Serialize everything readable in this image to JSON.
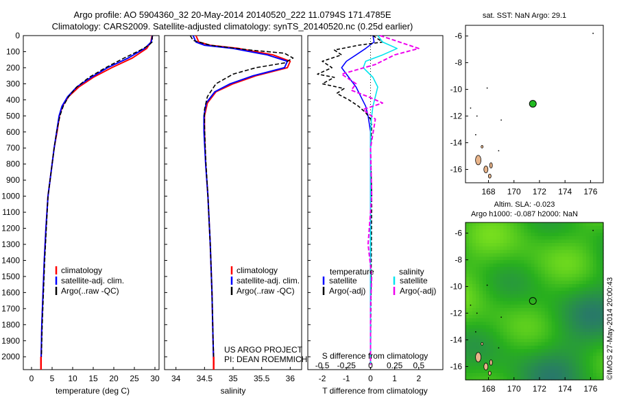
{
  "header": {
    "line1": "Argo profile: AO 5904360_32 20-May-2014 20140520_222 11.0794S 171.4785E",
    "line2": "Climatology: CARS2009. Satellite-adjusted climatology: synTS_20140520.nc (0.25d earlier)"
  },
  "colors": {
    "climatology": "#ff0000",
    "satellite": "#0000ff",
    "argo": "#000000",
    "salinity_satellite": "#00e5ee",
    "salinity_argo": "#ee00ee",
    "land": "#e8b48a",
    "sst_marker": "#22bb22"
  },
  "chart_data": [
    {
      "type": "line",
      "panel": "temperature",
      "xlabel": "temperature (deg C)",
      "ylabel": "",
      "xlim": [
        -2,
        31
      ],
      "ylim": [
        2080,
        0
      ],
      "xticks": [
        0,
        5,
        10,
        15,
        20,
        25,
        30
      ],
      "yticks": [
        0,
        100,
        200,
        300,
        400,
        500,
        600,
        700,
        800,
        900,
        1000,
        1100,
        1200,
        1300,
        1400,
        1500,
        1600,
        1700,
        1800,
        1900,
        2000
      ],
      "legend": [
        "climatology",
        "satellite-adj. clim.",
        "Argo(..raw -QC)"
      ],
      "series": [
        {
          "name": "climatology",
          "x": [
            29.3,
            29.0,
            28.0,
            24.5,
            19.5,
            15.0,
            11.5,
            9.0,
            7.5,
            6.8,
            6.2,
            5.5,
            5.0,
            4.5,
            4.0,
            3.5,
            3.1,
            2.8,
            2.5,
            2.3
          ],
          "y": [
            0,
            40,
            80,
            140,
            200,
            260,
            320,
            380,
            440,
            500,
            600,
            700,
            800,
            900,
            1000,
            1200,
            1400,
            1600,
            1800,
            2050
          ]
        },
        {
          "name": "satellite-adj. clim.",
          "x": [
            29.4,
            29.1,
            27.5,
            23.5,
            18.5,
            14.5,
            11.0,
            8.8,
            7.4,
            6.7,
            6.1,
            5.5,
            5.0,
            4.5,
            4.0,
            3.5,
            3.1,
            2.8,
            2.5,
            2.3
          ],
          "y": [
            0,
            40,
            80,
            140,
            200,
            260,
            320,
            380,
            440,
            500,
            600,
            700,
            800,
            900,
            1000,
            1200,
            1400,
            1600,
            1800,
            2050
          ]
        },
        {
          "name": "Argo(..raw -QC)",
          "x": [
            29.4,
            29.3,
            28.5,
            26.5,
            22.5,
            18.0,
            14.0,
            11.0,
            9.0,
            7.7,
            6.9,
            6.1,
            5.5,
            5.0,
            4.5,
            4.0,
            3.6,
            3.2,
            2.9,
            2.6,
            2.4
          ],
          "y": [
            0,
            40,
            60,
            90,
            140,
            200,
            260,
            320,
            380,
            440,
            500,
            600,
            700,
            800,
            900,
            1000,
            1200,
            1400,
            1600,
            1800,
            2000
          ]
        }
      ]
    },
    {
      "type": "line",
      "panel": "salinity",
      "xlabel": "salinity",
      "ylabel": "",
      "xlim": [
        33.8,
        36.2
      ],
      "ylim": [
        2080,
        0
      ],
      "xticks": [
        34,
        34.5,
        35,
        35.5,
        36
      ],
      "legend": [
        "climatology",
        "satellite-adj. clim.",
        "Argo(..raw -QC)"
      ],
      "annotation": [
        "US ARGO PROJECT",
        "PI: DEAN ROEMMICH"
      ],
      "series": [
        {
          "name": "climatology",
          "x": [
            34.35,
            34.4,
            34.6,
            35.1,
            35.7,
            36.0,
            35.95,
            35.4,
            35.0,
            34.7,
            34.55,
            34.5,
            34.5,
            34.52,
            34.56,
            34.6,
            34.63,
            34.65,
            34.66
          ],
          "y": [
            0,
            40,
            60,
            80,
            120,
            160,
            200,
            250,
            300,
            350,
            420,
            500,
            600,
            800,
            1000,
            1300,
            1600,
            1900,
            2050
          ]
        },
        {
          "name": "satellite-adj. clim.",
          "x": [
            34.3,
            34.35,
            34.5,
            35.0,
            35.6,
            35.95,
            35.9,
            35.35,
            34.95,
            34.68,
            34.53,
            34.49,
            34.49,
            34.52,
            34.56,
            34.6,
            34.63,
            34.65,
            34.66
          ],
          "y": [
            0,
            40,
            60,
            80,
            120,
            160,
            200,
            250,
            300,
            350,
            420,
            500,
            600,
            800,
            1000,
            1300,
            1600,
            1900,
            2050
          ]
        },
        {
          "name": "Argo(..raw -QC)",
          "x": [
            34.25,
            34.3,
            34.6,
            35.3,
            35.9,
            36.05,
            35.9,
            35.4,
            35.0,
            34.7,
            34.55,
            34.5,
            34.5,
            34.52,
            34.56,
            34.6,
            34.63,
            34.65,
            34.66
          ],
          "y": [
            0,
            30,
            60,
            90,
            110,
            140,
            170,
            200,
            240,
            300,
            380,
            460,
            560,
            760,
            1000,
            1300,
            1600,
            1900,
            2000
          ]
        }
      ]
    },
    {
      "type": "line",
      "panel": "difference",
      "xlabel": "T difference from climatology",
      "xlabel2": "S difference from climatology",
      "xlim": [
        -2.6,
        3
      ],
      "xticks": [
        -2,
        -1,
        0,
        1,
        2
      ],
      "x2ticks": [
        -0.5,
        -0.25,
        0,
        0.25,
        0.5
      ],
      "x2ticklabels": [
        "-0.5",
        "-0.25",
        "0",
        "0.25",
        "0.5"
      ],
      "ylim": [
        2080,
        0
      ],
      "legend_titles": [
        "temperature",
        "salinity"
      ],
      "legend": [
        "satellite",
        "Argo(-adj)",
        "satellite",
        "Argo(-adj)"
      ],
      "series": [
        {
          "name": "satellite",
          "x": [
            0.1,
            0.15,
            -0.2,
            -0.6,
            -1.0,
            -1.2,
            -0.9,
            -0.6,
            -0.4,
            -0.2,
            -0.1,
            0,
            0,
            0,
            0,
            0
          ],
          "y": [
            0,
            40,
            80,
            120,
            160,
            200,
            260,
            320,
            380,
            440,
            500,
            600,
            800,
            1200,
            1600,
            2050
          ]
        },
        {
          "name": "Argo(-adj)",
          "x": [
            0.1,
            0.5,
            -0.5,
            -1.5,
            -1.2,
            -2.0,
            -1.6,
            -2.2,
            -1.5,
            -2.0,
            -1.1,
            -1.4,
            -0.9,
            -0.5,
            -0.2,
            0,
            0.05,
            0,
            0.05,
            0
          ],
          "y": [
            0,
            40,
            60,
            90,
            120,
            160,
            200,
            240,
            260,
            300,
            330,
            360,
            400,
            440,
            480,
            520,
            560,
            700,
            1000,
            2000
          ]
        },
        {
          "name": "satellite",
          "x": [
            0.3,
            0.5,
            1.1,
            0.5,
            -0.2,
            -0.3,
            0.1,
            0.3,
            0.2,
            0.1,
            0.05,
            0,
            0,
            0,
            0
          ],
          "y": [
            0,
            40,
            80,
            120,
            160,
            200,
            260,
            320,
            380,
            440,
            500,
            600,
            1000,
            1600,
            2050
          ]
        },
        {
          "name": "Argo(-adj)",
          "x": [
            0.4,
            1.2,
            2.0,
            1.0,
            0.2,
            -1.2,
            -0.6,
            -0.8,
            -0.1,
            0.5,
            -0.3,
            0.2,
            0,
            0.05,
            -0.1,
            0.05,
            0,
            0
          ],
          "y": [
            0,
            40,
            80,
            120,
            180,
            240,
            300,
            340,
            380,
            420,
            460,
            520,
            700,
            1000,
            1300,
            1500,
            1700,
            2050
          ]
        }
      ]
    },
    {
      "type": "scatter",
      "panel": "sst-map",
      "title": "sat. SST: NaN Argo: 29.1",
      "xlim": [
        166.2,
        177
      ],
      "ylim": [
        -17,
        -5.2
      ],
      "xticks": [
        168,
        170,
        172,
        174,
        176
      ],
      "yticks": [
        -6,
        -8,
        -10,
        -12,
        -14,
        -16
      ],
      "point": {
        "lon": 171.4785,
        "lat": -11.0794
      }
    },
    {
      "type": "heatmap",
      "panel": "sla-map",
      "title": "Altim. SLA: -0.023",
      "subtitle": "Argo h1000: -0.087 h2000: NaN",
      "xlim": [
        166.2,
        177
      ],
      "ylim": [
        -17,
        -5.2
      ],
      "xticks": [
        168,
        170,
        172,
        174,
        176
      ],
      "yticks": [
        -6,
        -8,
        -10,
        -12,
        -14,
        -16
      ],
      "point": {
        "lon": 171.4785,
        "lat": -11.0794
      }
    }
  ],
  "footer": {
    "credit": "©IMOS 27-May-2014 20:00:43"
  }
}
